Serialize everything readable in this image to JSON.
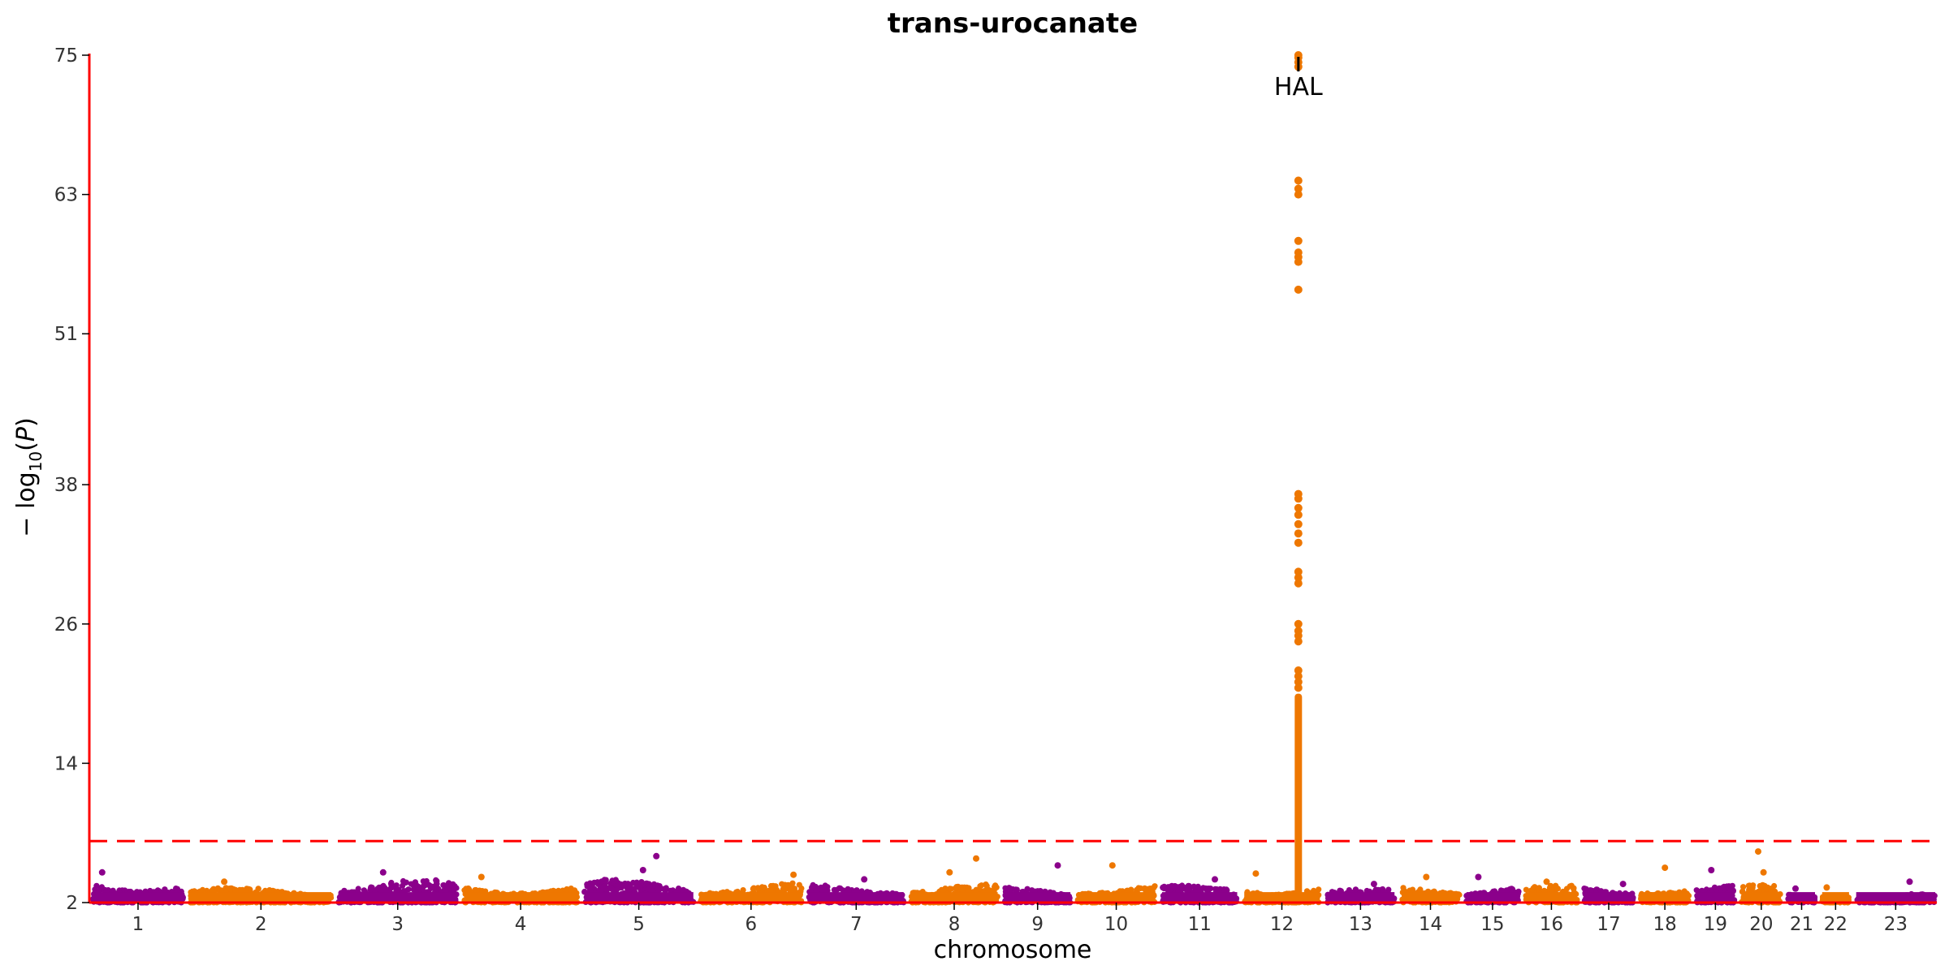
{
  "chart_data": {
    "type": "scatter",
    "title": "trans-urocanate",
    "xlabel": "chromosome",
    "ylabel": "−log10(P)",
    "ylim": [
      2,
      75
    ],
    "yticks": [
      2,
      14,
      26,
      38,
      51,
      63,
      75
    ],
    "significance_line": 7.3,
    "colors": {
      "odd_chromosome": "#8B008B",
      "even_chromosome": "#EE7700",
      "axis": "#FF0000",
      "threshold": "#FF0000"
    },
    "grid": false,
    "legend": "none",
    "chromosomes": [
      {
        "label": "1",
        "background": [
          2.0,
          4.0
        ],
        "peaks": [
          4.6
        ]
      },
      {
        "label": "2",
        "background": [
          2.0,
          3.3
        ],
        "peaks": [
          3.8
        ]
      },
      {
        "label": "3",
        "background": [
          2.0,
          4.0
        ],
        "peaks": [
          4.6
        ]
      },
      {
        "label": "4",
        "background": [
          2.0,
          3.6
        ],
        "peaks": [
          4.2
        ]
      },
      {
        "label": "5",
        "background": [
          2.0,
          4.0
        ],
        "peaks": [
          4.8,
          6.0
        ]
      },
      {
        "label": "6",
        "background": [
          2.0,
          3.7
        ],
        "peaks": [
          4.4
        ]
      },
      {
        "label": "7",
        "background": [
          2.0,
          3.6
        ],
        "peaks": [
          4.0
        ]
      },
      {
        "label": "8",
        "background": [
          2.0,
          3.6
        ],
        "peaks": [
          4.6,
          5.8
        ]
      },
      {
        "label": "9",
        "background": [
          2.0,
          3.4
        ],
        "peaks": [
          5.2
        ]
      },
      {
        "label": "10",
        "background": [
          2.0,
          3.6
        ],
        "peaks": [
          5.2
        ]
      },
      {
        "label": "11",
        "background": [
          2.0,
          3.5
        ],
        "peaks": [
          4.0
        ]
      },
      {
        "label": "12",
        "background": [
          2.0,
          3.6
        ],
        "peaks": [
          4.5
        ]
      },
      {
        "label": "13",
        "background": [
          2.0,
          3.2
        ],
        "peaks": [
          3.6
        ]
      },
      {
        "label": "14",
        "background": [
          2.0,
          3.6
        ],
        "peaks": [
          4.2
        ]
      },
      {
        "label": "15",
        "background": [
          2.0,
          3.6
        ],
        "peaks": [
          4.2
        ]
      },
      {
        "label": "16",
        "background": [
          2.0,
          3.5
        ],
        "peaks": [
          3.8
        ]
      },
      {
        "label": "17",
        "background": [
          2.0,
          3.4
        ],
        "peaks": [
          3.6
        ]
      },
      {
        "label": "18",
        "background": [
          2.0,
          3.6
        ],
        "peaks": [
          5.0
        ]
      },
      {
        "label": "19",
        "background": [
          2.0,
          3.5
        ],
        "peaks": [
          4.8
        ]
      },
      {
        "label": "20",
        "background": [
          2.0,
          3.6
        ],
        "peaks": [
          4.6,
          6.4
        ]
      },
      {
        "label": "21",
        "background": [
          2.0,
          3.0
        ],
        "peaks": [
          3.2
        ]
      },
      {
        "label": "22",
        "background": [
          2.0,
          3.0
        ],
        "peaks": [
          3.3
        ]
      },
      {
        "label": "23",
        "background": [
          2.0,
          2.8
        ],
        "peaks": [
          3.8
        ]
      }
    ],
    "highlighted_locus": {
      "chromosome": "12",
      "gene": "HAL",
      "position_fraction": 0.72,
      "column_range": [
        2.0,
        20.0
      ],
      "values": [
        20.5,
        21.0,
        21.5,
        22.0,
        24.5,
        25.0,
        25.4,
        26.0,
        29.5,
        30.0,
        30.5,
        33.0,
        33.8,
        34.6,
        35.4,
        36.0,
        36.8,
        37.2,
        54.8,
        57.2,
        57.6,
        58.0,
        59.0,
        63.0,
        63.5,
        64.2,
        74.0,
        74.4,
        74.8,
        75.0
      ]
    },
    "annotation": "HAL"
  }
}
